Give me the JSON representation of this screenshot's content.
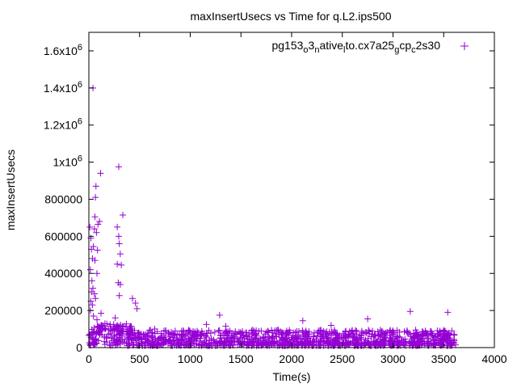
{
  "chart_data": {
    "type": "scatter",
    "title": "maxInsertUsecs vs Time for q.L2.ips500",
    "xlabel": "Time(s)",
    "ylabel": "maxInsertUsecs",
    "xlim": [
      0,
      4000
    ],
    "ylim": [
      0,
      1700000
    ],
    "x_ticks": [
      0,
      500,
      1000,
      1500,
      2000,
      2500,
      3000,
      3500,
      4000
    ],
    "x_tick_labels": [
      "0",
      "500",
      "1000",
      "1500",
      "2000",
      "2500",
      "3000",
      "3500",
      "4000"
    ],
    "y_ticks": [
      0,
      200000,
      400000,
      600000,
      800000,
      1000000,
      1200000,
      1400000,
      1600000
    ],
    "y_tick_labels": [
      {
        "base": "0",
        "sup": ""
      },
      {
        "base": "200000",
        "sup": ""
      },
      {
        "base": "400000",
        "sup": ""
      },
      {
        "base": "600000",
        "sup": ""
      },
      {
        "base": "800000",
        "sup": ""
      },
      {
        "base": "1x10",
        "sup": "6"
      },
      {
        "base": "1.2x10",
        "sup": "6"
      },
      {
        "base": "1.4x10",
        "sup": "6"
      },
      {
        "base": "1.6x10",
        "sup": "6"
      }
    ],
    "grid": false,
    "legend_position": "top-right",
    "marker": "plus",
    "color": "#9400d3",
    "series": [
      {
        "name": "pg153o3nativeto.cx7a25gcpc2s30",
        "name_parts": [
          {
            "t": "pg153",
            "s": "n"
          },
          {
            "t": "o",
            "s": "sub"
          },
          {
            "t": "3",
            "s": "n"
          },
          {
            "t": "n",
            "s": "sub"
          },
          {
            "t": "ative",
            "s": "n"
          },
          {
            "t": "l",
            "s": "sub"
          },
          {
            "t": "to.cx7a25",
            "s": "n"
          },
          {
            "t": "g",
            "s": "sub"
          },
          {
            "t": "cp",
            "s": "n"
          },
          {
            "t": "c",
            "s": "sub"
          },
          {
            "t": "2s30",
            "s": "n"
          }
        ],
        "points": [
          [
            40,
            1400000
          ],
          [
            295,
            975000
          ],
          [
            115,
            940000
          ],
          [
            70,
            870000
          ],
          [
            65,
            810000
          ],
          [
            335,
            715000
          ],
          [
            60,
            705000
          ],
          [
            105,
            680000
          ],
          [
            280,
            650000
          ],
          [
            10,
            650000
          ],
          [
            90,
            665000
          ],
          [
            55,
            640000
          ],
          [
            75,
            620000
          ],
          [
            295,
            600000
          ],
          [
            20,
            590000
          ],
          [
            300,
            560000
          ],
          [
            45,
            545000
          ],
          [
            25,
            530000
          ],
          [
            85,
            525000
          ],
          [
            310,
            505000
          ],
          [
            35,
            480000
          ],
          [
            60,
            470000
          ],
          [
            280,
            450000
          ],
          [
            320,
            445000
          ],
          [
            15,
            420000
          ],
          [
            80,
            400000
          ],
          [
            30,
            360000
          ],
          [
            290,
            350000
          ],
          [
            310,
            340000
          ],
          [
            40,
            320000
          ],
          [
            25,
            300000
          ],
          [
            55,
            290000
          ],
          [
            300,
            280000
          ],
          [
            65,
            265000
          ],
          [
            20,
            250000
          ],
          [
            430,
            265000
          ],
          [
            460,
            240000
          ],
          [
            475,
            210000
          ],
          [
            35,
            230000
          ],
          [
            120,
            185000
          ],
          [
            15,
            200000
          ],
          [
            45,
            170000
          ],
          [
            260,
            160000
          ],
          [
            80,
            150000
          ],
          [
            1290,
            175000
          ],
          [
            3170,
            195000
          ],
          [
            3540,
            190000
          ],
          [
            2750,
            155000
          ],
          [
            2110,
            145000
          ],
          [
            1350,
            115000
          ],
          [
            2390,
            120000
          ],
          [
            650,
            100000
          ],
          [
            1160,
            125000
          ],
          [
            3450,
            75000
          ],
          [
            2850,
            85000
          ],
          [
            1700,
            90000
          ]
        ]
      }
    ],
    "noise_band": {
      "x_from": 0,
      "x_to": 3620,
      "y_max": 100000
    }
  }
}
